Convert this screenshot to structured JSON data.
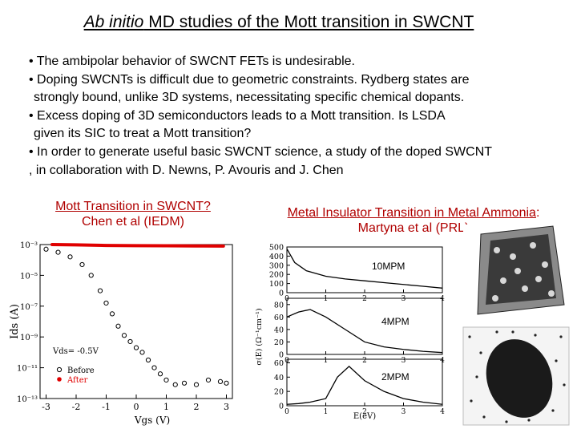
{
  "title": {
    "italic": "Ab initio",
    "rest": " MD studies of the Mott transition in SWCNT"
  },
  "bullets": [
    [
      "• The ambipolar behavior of SWCNT FETs is undesirable."
    ],
    [
      "• Doping SWCNTs is difficult due to geometric constraints. Rydberg states are",
      " strongly bound, unlike 3D systems, necessitating specific chemical dopants."
    ],
    [
      "• Excess doping of 3D semiconductors leads to a Mott transition.  Is LSDA",
      " given its SIC to treat a Mott transition?"
    ],
    [
      "• In order to generate useful basic SWCNT science, a study of the doped SWCNT",
      " , in collaboration with D. Newns, P. Avouris and J. Chen"
    ]
  ],
  "captions": {
    "left_line1": "Mott Transition in SWCNT?",
    "left_line2": "Chen et al (IEDM)",
    "right_line1": "Metal Insulator Transition in Metal Ammonia",
    "right_colon": ":",
    "right_line2": "Martyna et al (PRL)"
  },
  "chart_data": [
    {
      "type": "scatter",
      "xlabel": "Vgs (V)",
      "ylabel": "Ids (A)",
      "y_log_scale": true,
      "xlim": [
        -3.2,
        3.2
      ],
      "ylim_exponents": [
        -13,
        -3
      ],
      "x_ticks": [
        "-3",
        "-2",
        "-1",
        "0",
        "1",
        "2",
        "3"
      ],
      "y_ticks": [
        "10⁻³",
        "10⁻⁵",
        "10⁻⁷",
        "10⁻⁹",
        "10⁻¹¹",
        "10⁻¹³"
      ],
      "y_tick_exponents": [
        -3,
        -5,
        -7,
        -9,
        -11,
        -13
      ],
      "annotation": "Vds= -0.5V",
      "legend": [
        "Before",
        "After"
      ],
      "legend_placement": "bottom-left",
      "series": [
        {
          "name": "Before",
          "color": "#000000",
          "x": [
            -3.0,
            -2.6,
            -2.2,
            -1.8,
            -1.5,
            -1.2,
            -1.0,
            -0.8,
            -0.6,
            -0.4,
            -0.2,
            0.0,
            0.2,
            0.4,
            0.6,
            0.8,
            1.0,
            1.3,
            1.6,
            2.0,
            2.4,
            2.8,
            3.0
          ],
          "y_exponent": [
            -3.3,
            -3.5,
            -3.8,
            -4.3,
            -5.0,
            -6.0,
            -6.8,
            -7.5,
            -8.3,
            -8.9,
            -9.3,
            -9.7,
            -10.0,
            -10.5,
            -11.0,
            -11.4,
            -11.8,
            -12.1,
            -12.0,
            -12.1,
            -11.8,
            -11.9,
            -12.0
          ]
        },
        {
          "name": "After",
          "color": "#e00000",
          "x": [
            -2.8,
            -2.0,
            -1.0,
            0.0,
            1.0,
            2.0,
            2.9
          ],
          "y_exponent": [
            -3.0,
            -3.02,
            -3.06,
            -3.07,
            -3.08,
            -3.09,
            -3.1
          ]
        }
      ]
    },
    {
      "type": "line",
      "xlabel": "E(eV)",
      "ylabel": "σ(E)  (Ω⁻¹cm⁻¹)",
      "xlim": [
        0,
        4
      ],
      "x_ticks": [
        "0",
        "1",
        "2",
        "3",
        "4"
      ],
      "panels": [
        {
          "name": "10MPM",
          "ylim": [
            0,
            500
          ],
          "y_ticks": [
            "500",
            "400",
            "300",
            "200",
            "100",
            "0"
          ],
          "x": [
            0.0,
            0.2,
            0.5,
            1.0,
            1.5,
            2.0,
            2.5,
            3.0,
            3.5,
            4.0
          ],
          "y": [
            480,
            330,
            240,
            180,
            150,
            130,
            110,
            90,
            70,
            50
          ]
        },
        {
          "name": "4MPM",
          "ylim": [
            0,
            90
          ],
          "y_ticks": [
            "80",
            "60",
            "40",
            "20",
            "0"
          ],
          "x": [
            0.0,
            0.3,
            0.6,
            1.0,
            1.5,
            2.0,
            2.5,
            3.0,
            3.5,
            4.0
          ],
          "y": [
            60,
            68,
            72,
            60,
            40,
            20,
            12,
            8,
            5,
            3
          ]
        },
        {
          "name": "2MPM",
          "ylim": [
            0,
            65
          ],
          "y_ticks": [
            "60",
            "40",
            "20",
            "0"
          ],
          "x": [
            0.0,
            0.3,
            0.6,
            1.0,
            1.3,
            1.6,
            2.0,
            2.5,
            3.0,
            3.5,
            4.0
          ],
          "y": [
            2,
            3,
            5,
            10,
            40,
            55,
            35,
            20,
            10,
            5,
            2
          ]
        }
      ]
    }
  ],
  "simulation_images": [
    {
      "name": "10MPM structure snapshot"
    },
    {
      "name": "2MPM structure snapshot"
    }
  ]
}
